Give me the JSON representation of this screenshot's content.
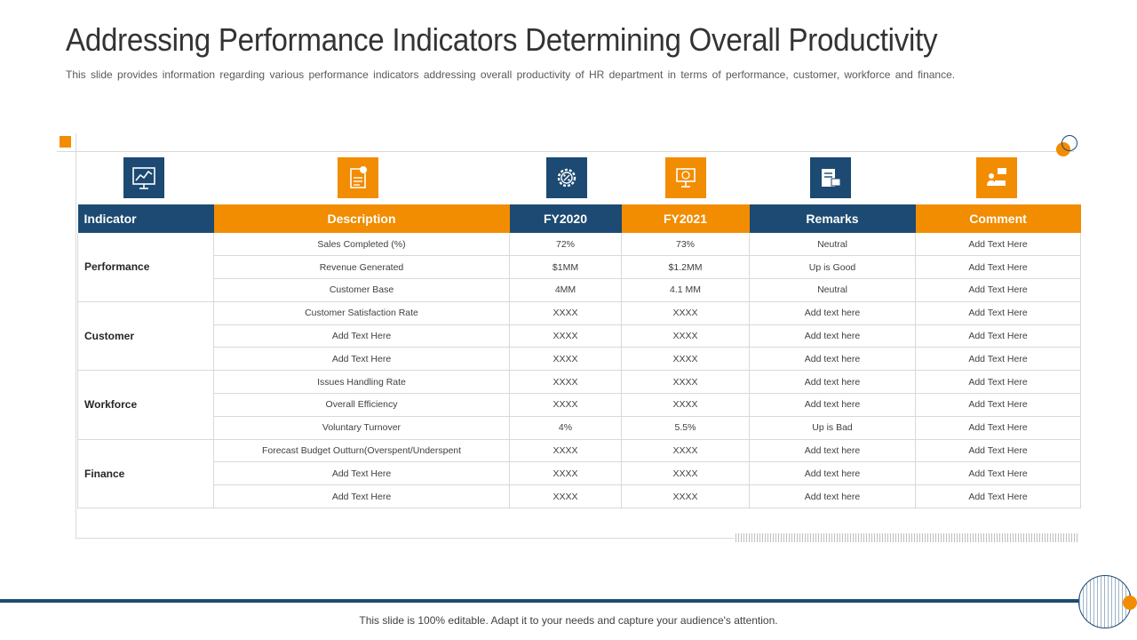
{
  "header": {
    "title": "Addressing Performance Indicators Determining Overall Productivity",
    "subtitle": "This slide provides information regarding various performance indicators addressing overall productivity of HR department in terms of performance, customer, workforce and finance."
  },
  "icons": [
    "chart-presentation-icon",
    "document-money-icon",
    "percent-gear-icon",
    "computer-percent-icon",
    "document-chat-icon",
    "person-laptop-chat-icon"
  ],
  "colors": {
    "blue": "#1c4a72",
    "orange": "#f28c00"
  },
  "table": {
    "headers": {
      "indicator": "Indicator",
      "description": "Description",
      "fy2020": "FY2020",
      "fy2021": "FY2021",
      "remarks": "Remarks",
      "comment": "Comment"
    },
    "groups": [
      {
        "name": "Performance",
        "rows": [
          [
            "Sales Completed  (%)",
            "72%",
            "73%",
            "Neutral",
            "Add Text Here"
          ],
          [
            "Revenue Generated",
            "$1MM",
            "$1.2MM",
            "Up is Good",
            "Add Text Here"
          ],
          [
            "Customer Base",
            "4MM",
            "4.1 MM",
            "Neutral",
            "Add Text Here"
          ]
        ]
      },
      {
        "name": "Customer",
        "rows": [
          [
            "Customer Satisfaction Rate",
            "XXXX",
            "XXXX",
            "Add text here",
            "Add Text Here"
          ],
          [
            "Add Text Here",
            "XXXX",
            "XXXX",
            "Add text here",
            "Add Text Here"
          ],
          [
            "Add Text Here",
            "XXXX",
            "XXXX",
            "Add text here",
            "Add Text Here"
          ]
        ]
      },
      {
        "name": "Workforce",
        "rows": [
          [
            "Issues Handling Rate",
            "XXXX",
            "XXXX",
            "Add text here",
            "Add Text Here"
          ],
          [
            "Overall Efficiency",
            "XXXX",
            "XXXX",
            "Add text here",
            "Add Text Here"
          ],
          [
            "Voluntary Turnover",
            "4%",
            "5.5%",
            "Up is Bad",
            "Add Text Here"
          ]
        ]
      },
      {
        "name": "Finance",
        "rows": [
          [
            "Forecast Budget Outturn(Overspent/Underspent",
            "XXXX",
            "XXXX",
            "Add text here",
            "Add Text Here"
          ],
          [
            "Add Text Here",
            "XXXX",
            "XXXX",
            "Add text here",
            "Add Text Here"
          ],
          [
            "Add Text Here",
            "XXXX",
            "XXXX",
            "Add text here",
            "Add Text Here"
          ]
        ]
      }
    ]
  },
  "footer": {
    "text": "This slide is 100% editable. Adapt it to your needs and capture your audience's attention."
  }
}
